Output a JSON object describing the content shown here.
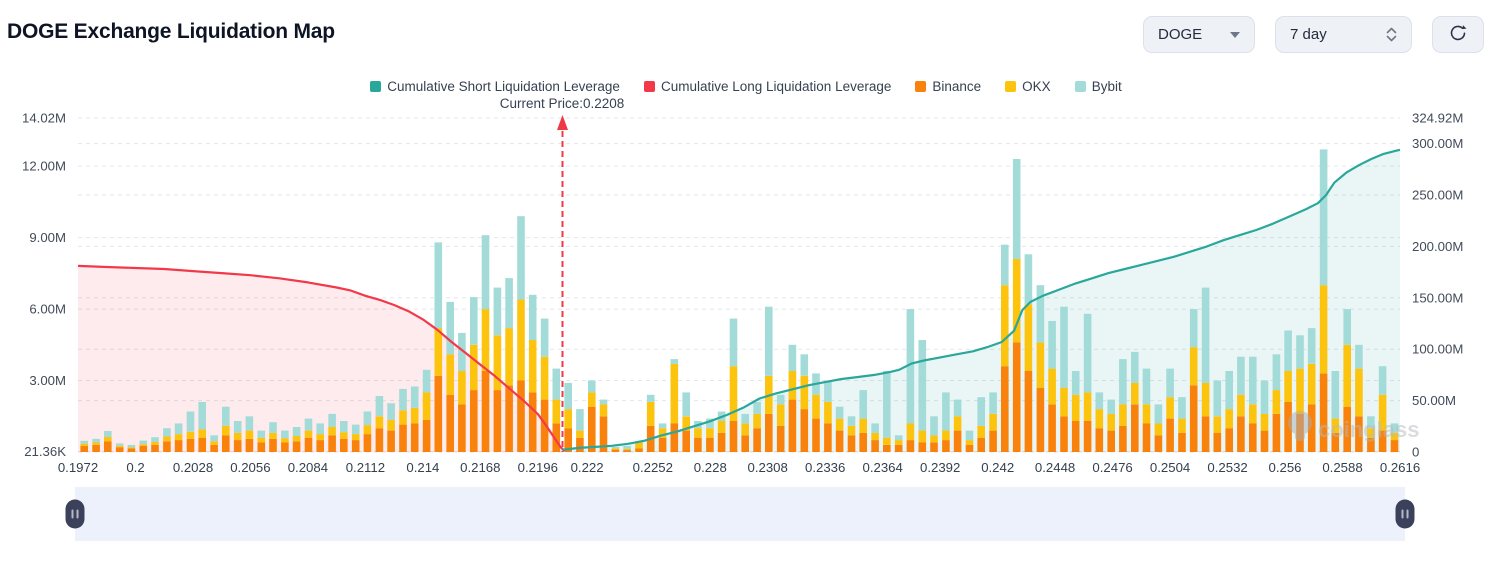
{
  "header": {
    "title": "DOGE Exchange Liquidation Map"
  },
  "controls": {
    "symbol": "DOGE",
    "period": "7 day"
  },
  "legend": {
    "items": [
      {
        "label": "Cumulative Short Liquidation Leverage",
        "color": "#2aa79b"
      },
      {
        "label": "Cumulative Long Liquidation Leverage",
        "color": "#f2394a"
      },
      {
        "label": "Binance",
        "color": "#f8820c"
      },
      {
        "label": "OKX",
        "color": "#fcc40e"
      },
      {
        "label": "Bybit",
        "color": "#a3dbd8"
      }
    ]
  },
  "watermark": "coinglass",
  "chart_data": {
    "type": "bar",
    "title": "DOGE Exchange Liquidation Map",
    "current_price": {
      "value": 0.2208,
      "label": "Current Price:0.2208",
      "color": "#ef3a46"
    },
    "left_axis": {
      "labels": [
        "14.02M",
        "12.00M",
        "9.00M",
        "6.00M",
        "3.00M",
        "21.36K"
      ],
      "values": [
        14.02,
        12,
        9,
        6,
        3,
        0.02136
      ],
      "max": 14.02
    },
    "right_axis": {
      "labels": [
        "324.92M",
        "300.00M",
        "250.00M",
        "200.00M",
        "150.00M",
        "100.00M",
        "50.00M",
        "0"
      ],
      "values": [
        324.92,
        300,
        250,
        200,
        150,
        100,
        50,
        0
      ],
      "max": 324.92
    },
    "x_axis": {
      "labels": [
        "0.1972",
        "0.2",
        "0.2028",
        "0.2056",
        "0.2084",
        "0.2112",
        "0.214",
        "0.2168",
        "0.2196",
        "0.222",
        "0.2252",
        "0.228",
        "0.2308",
        "0.2336",
        "0.2364",
        "0.2392",
        "0.242",
        "0.2448",
        "0.2476",
        "0.2504",
        "0.2532",
        "0.256",
        "0.2588",
        "0.2616"
      ],
      "values": [
        0.1972,
        0.2,
        0.2028,
        0.2056,
        0.2084,
        0.2112,
        0.214,
        0.2168,
        0.2196,
        0.222,
        0.2252,
        0.228,
        0.2308,
        0.2336,
        0.2364,
        0.2392,
        0.242,
        0.2448,
        0.2476,
        0.2504,
        0.2532,
        0.256,
        0.2588,
        0.2616
      ],
      "min": 0.1972,
      "max": 0.2616
    },
    "bar_series": [
      {
        "name": "Binance",
        "color": "#f8820c"
      },
      {
        "name": "OKX",
        "color": "#fcc40e"
      },
      {
        "name": "Bybit",
        "color": "#a3dbd8"
      }
    ],
    "bars_units": "millions, left axis, [price, binance, okx, bybit]",
    "bars": [
      [
        0.1975,
        0.25,
        0.1,
        0.12
      ],
      [
        0.19808,
        0.3,
        0.1,
        0.15
      ],
      [
        0.19865,
        0.45,
        0.18,
        0.25
      ],
      [
        0.19923,
        0.2,
        0.06,
        0.1
      ],
      [
        0.1998,
        0.15,
        0.05,
        0.1
      ],
      [
        0.20038,
        0.25,
        0.08,
        0.15
      ],
      [
        0.20095,
        0.3,
        0.12,
        0.2
      ],
      [
        0.20153,
        0.45,
        0.2,
        0.35
      ],
      [
        0.2021,
        0.5,
        0.25,
        0.45
      ],
      [
        0.20268,
        0.55,
        0.3,
        0.85
      ],
      [
        0.20325,
        0.6,
        0.35,
        1.15
      ],
      [
        0.20383,
        0.3,
        0.15,
        0.25
      ],
      [
        0.2044,
        0.7,
        0.4,
        0.8
      ],
      [
        0.20498,
        0.5,
        0.3,
        0.5
      ],
      [
        0.20555,
        0.55,
        0.35,
        0.6
      ],
      [
        0.20613,
        0.4,
        0.2,
        0.3
      ],
      [
        0.2067,
        0.55,
        0.25,
        0.45
      ],
      [
        0.20728,
        0.4,
        0.18,
        0.32
      ],
      [
        0.20785,
        0.45,
        0.22,
        0.38
      ],
      [
        0.20843,
        0.6,
        0.3,
        0.5
      ],
      [
        0.209,
        0.5,
        0.25,
        0.45
      ],
      [
        0.20958,
        0.7,
        0.35,
        0.55
      ],
      [
        0.21015,
        0.55,
        0.28,
        0.47
      ],
      [
        0.21073,
        0.5,
        0.25,
        0.4
      ],
      [
        0.2113,
        0.75,
        0.38,
        0.57
      ],
      [
        0.21188,
        1.0,
        0.5,
        0.85
      ],
      [
        0.21245,
        0.9,
        0.45,
        0.7
      ],
      [
        0.21303,
        1.15,
        0.6,
        0.9
      ],
      [
        0.2136,
        1.2,
        0.65,
        0.9
      ],
      [
        0.21418,
        1.35,
        1.15,
        0.95
      ],
      [
        0.21475,
        3.2,
        2.0,
        3.6
      ],
      [
        0.21533,
        2.4,
        1.7,
        2.2
      ],
      [
        0.2159,
        2.0,
        1.4,
        1.6
      ],
      [
        0.21648,
        2.6,
        1.9,
        2.0
      ],
      [
        0.21705,
        3.4,
        2.6,
        3.1
      ],
      [
        0.21763,
        2.6,
        2.3,
        2.0
      ],
      [
        0.2182,
        2.8,
        2.4,
        2.1
      ],
      [
        0.21878,
        3.0,
        3.4,
        3.5
      ],
      [
        0.21935,
        2.5,
        2.2,
        1.9
      ],
      [
        0.21993,
        2.2,
        1.8,
        1.6
      ],
      [
        0.2205,
        1.2,
        1.0,
        1.3
      ],
      [
        0.22108,
        1.0,
        0.8,
        1.1
      ],
      [
        0.22165,
        0.6,
        0.3,
        0.9
      ],
      [
        0.22223,
        1.9,
        0.6,
        0.5
      ],
      [
        0.2228,
        1.5,
        0.5,
        0.2
      ],
      [
        0.22338,
        0.1,
        0.06,
        0.05
      ],
      [
        0.22395,
        0.08,
        0.05,
        0.12
      ],
      [
        0.22453,
        0.15,
        0.25,
        0.05
      ],
      [
        0.2251,
        1.1,
        1.0,
        0.3
      ],
      [
        0.22568,
        0.6,
        0.4,
        0.2
      ],
      [
        0.22625,
        1.2,
        2.5,
        0.2
      ],
      [
        0.22683,
        0.9,
        0.6,
        1.0
      ],
      [
        0.2274,
        0.6,
        0.4,
        0.3
      ],
      [
        0.22798,
        0.6,
        0.4,
        0.4
      ],
      [
        0.22855,
        0.8,
        0.5,
        0.4
      ],
      [
        0.22913,
        1.3,
        2.3,
        2.0
      ],
      [
        0.2297,
        0.7,
        0.5,
        0.4
      ],
      [
        0.23028,
        1.0,
        0.6,
        0.5
      ],
      [
        0.23085,
        1.6,
        1.6,
        2.9
      ],
      [
        0.23143,
        1.1,
        0.9,
        0.4
      ],
      [
        0.232,
        2.2,
        1.2,
        1.1
      ],
      [
        0.23258,
        1.8,
        1.4,
        0.9
      ],
      [
        0.23315,
        1.4,
        1.0,
        0.9
      ],
      [
        0.23373,
        1.2,
        0.9,
        0.9
      ],
      [
        0.2343,
        0.9,
        0.5,
        0.5
      ],
      [
        0.23488,
        0.7,
        0.4,
        0.4
      ],
      [
        0.23545,
        0.8,
        0.6,
        1.2
      ],
      [
        0.23603,
        0.5,
        0.3,
        0.4
      ],
      [
        0.2366,
        0.3,
        0.3,
        2.8
      ],
      [
        0.23718,
        0.3,
        0.2,
        0.2
      ],
      [
        0.23775,
        0.5,
        0.7,
        4.8
      ],
      [
        0.23833,
        0.4,
        0.5,
        3.8
      ],
      [
        0.2389,
        0.4,
        0.3,
        0.8
      ],
      [
        0.23948,
        0.5,
        0.4,
        1.6
      ],
      [
        0.24005,
        0.9,
        0.6,
        0.7
      ],
      [
        0.24063,
        0.3,
        0.2,
        0.4
      ],
      [
        0.2412,
        0.6,
        0.5,
        1.2
      ],
      [
        0.24178,
        0.9,
        0.7,
        0.9
      ],
      [
        0.24235,
        3.6,
        3.4,
        1.7
      ],
      [
        0.24293,
        4.6,
        3.5,
        4.2
      ],
      [
        0.2435,
        3.4,
        2.8,
        2.1
      ],
      [
        0.24408,
        2.7,
        1.9,
        2.4
      ],
      [
        0.24465,
        2.0,
        1.5,
        2.0
      ],
      [
        0.24523,
        1.5,
        1.2,
        3.4
      ],
      [
        0.2458,
        1.3,
        1.1,
        1.0
      ],
      [
        0.24638,
        1.3,
        1.2,
        3.3
      ],
      [
        0.24695,
        1.0,
        0.8,
        0.7
      ],
      [
        0.24753,
        0.9,
        0.7,
        0.6
      ],
      [
        0.2481,
        1.1,
        0.9,
        1.9
      ],
      [
        0.24868,
        2.0,
        0.9,
        1.3
      ],
      [
        0.24925,
        1.2,
        0.8,
        1.5
      ],
      [
        0.24983,
        0.7,
        0.5,
        0.8
      ],
      [
        0.2504,
        1.4,
        0.9,
        1.2
      ],
      [
        0.25098,
        0.8,
        0.6,
        0.9
      ],
      [
        0.25155,
        2.8,
        1.6,
        1.6
      ],
      [
        0.25213,
        1.5,
        1.4,
        4.0
      ],
      [
        0.2527,
        0.8,
        0.7,
        1.5
      ],
      [
        0.25328,
        1.0,
        0.8,
        1.6
      ],
      [
        0.25385,
        1.5,
        0.9,
        1.6
      ],
      [
        0.25443,
        1.2,
        0.8,
        2.0
      ],
      [
        0.255,
        0.9,
        0.7,
        1.4
      ],
      [
        0.25558,
        1.6,
        1.0,
        1.5
      ],
      [
        0.25615,
        2.1,
        1.3,
        1.7
      ],
      [
        0.25673,
        1.6,
        1.9,
        1.4
      ],
      [
        0.2573,
        2.0,
        1.7,
        1.5
      ],
      [
        0.25788,
        3.3,
        3.7,
        5.7
      ],
      [
        0.25845,
        0.8,
        0.6,
        2.0
      ],
      [
        0.25903,
        1.9,
        2.6,
        1.5
      ],
      [
        0.2596,
        1.5,
        2.0,
        1.0
      ],
      [
        0.26018,
        0.6,
        0.4,
        0.5
      ],
      [
        0.26075,
        0.9,
        1.5,
        1.2
      ],
      [
        0.26133,
        0.5,
        0.3,
        0.4
      ]
    ],
    "lines_units": "millions, right axis, [price, value]",
    "lines": [
      {
        "name": "Cumulative Long Liquidation Leverage",
        "color": "#f2394a",
        "fill": "rgba(242,57,74,0.10)",
        "points": [
          [
            0.1972,
            181
          ],
          [
            0.1986,
            180
          ],
          [
            0.2,
            179
          ],
          [
            0.2014,
            178
          ],
          [
            0.2028,
            176
          ],
          [
            0.2042,
            174
          ],
          [
            0.2056,
            172
          ],
          [
            0.207,
            169
          ],
          [
            0.2084,
            165
          ],
          [
            0.2098,
            160
          ],
          [
            0.2105,
            157
          ],
          [
            0.2112,
            152
          ],
          [
            0.2119,
            148
          ],
          [
            0.2126,
            143
          ],
          [
            0.2133,
            137
          ],
          [
            0.214,
            129
          ],
          [
            0.2147,
            119
          ],
          [
            0.2154,
            107
          ],
          [
            0.2161,
            96
          ],
          [
            0.2168,
            85
          ],
          [
            0.2175,
            74
          ],
          [
            0.2182,
            62
          ],
          [
            0.2189,
            50
          ],
          [
            0.2196,
            37
          ],
          [
            0.22,
            26
          ],
          [
            0.2204,
            14
          ],
          [
            0.2207,
            5
          ],
          [
            0.2209,
            1
          ]
        ]
      },
      {
        "name": "Cumulative Short Liquidation Leverage",
        "color": "#2aa79b",
        "fill": "rgba(42,167,155,0.10)",
        "points": [
          [
            0.2208,
            2
          ],
          [
            0.2216,
            4
          ],
          [
            0.2224,
            5
          ],
          [
            0.2232,
            6
          ],
          [
            0.224,
            8
          ],
          [
            0.2248,
            11
          ],
          [
            0.2256,
            16
          ],
          [
            0.2264,
            20
          ],
          [
            0.2272,
            25
          ],
          [
            0.228,
            30
          ],
          [
            0.2288,
            36
          ],
          [
            0.2296,
            43
          ],
          [
            0.2304,
            52
          ],
          [
            0.2312,
            57
          ],
          [
            0.232,
            61
          ],
          [
            0.2328,
            65
          ],
          [
            0.2336,
            68
          ],
          [
            0.2344,
            71
          ],
          [
            0.2352,
            73
          ],
          [
            0.236,
            75
          ],
          [
            0.2368,
            78
          ],
          [
            0.2372,
            80
          ],
          [
            0.2378,
            86
          ],
          [
            0.2384,
            89
          ],
          [
            0.2392,
            92
          ],
          [
            0.24,
            95
          ],
          [
            0.2408,
            98
          ],
          [
            0.2415,
            102
          ],
          [
            0.2422,
            107
          ],
          [
            0.2428,
            118
          ],
          [
            0.2432,
            138
          ],
          [
            0.2436,
            146
          ],
          [
            0.2442,
            152
          ],
          [
            0.245,
            158
          ],
          [
            0.2458,
            164
          ],
          [
            0.2466,
            169
          ],
          [
            0.2474,
            174
          ],
          [
            0.2482,
            178
          ],
          [
            0.249,
            182
          ],
          [
            0.2498,
            186
          ],
          [
            0.2506,
            190
          ],
          [
            0.2514,
            195
          ],
          [
            0.2522,
            200
          ],
          [
            0.253,
            206
          ],
          [
            0.2538,
            211
          ],
          [
            0.2546,
            216
          ],
          [
            0.2554,
            222
          ],
          [
            0.2562,
            229
          ],
          [
            0.257,
            236
          ],
          [
            0.2576,
            242
          ],
          [
            0.258,
            250
          ],
          [
            0.2584,
            262
          ],
          [
            0.259,
            272
          ],
          [
            0.2596,
            279
          ],
          [
            0.2602,
            285
          ],
          [
            0.2608,
            290
          ],
          [
            0.2612,
            292
          ],
          [
            0.2616,
            294
          ]
        ]
      }
    ],
    "grid": "horizontal dashed",
    "legend_position": "top center"
  }
}
